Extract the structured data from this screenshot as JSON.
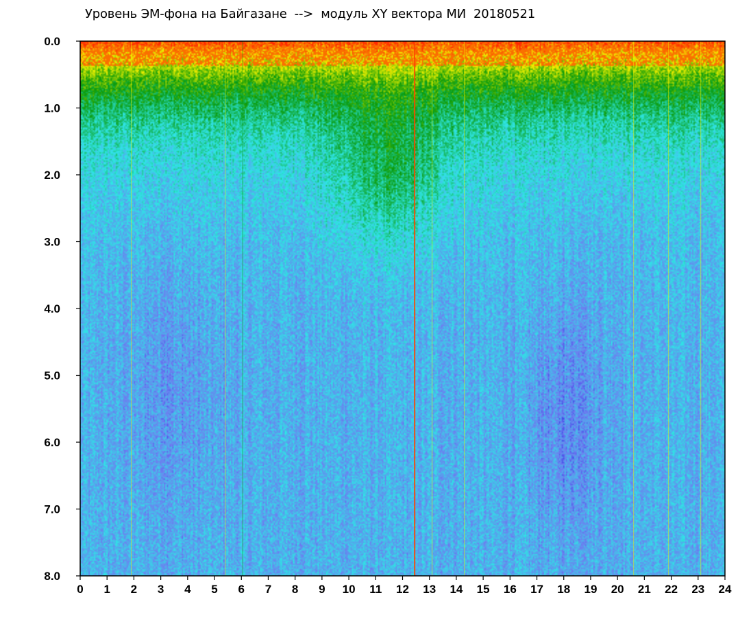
{
  "chart_data": {
    "type": "heatmap",
    "title": "Уровень ЭМ-фона на Байгазане  -->  модуль XY вектора МИ  20180521",
    "x_ticks": [
      "0",
      "1",
      "2",
      "3",
      "4",
      "5",
      "6",
      "7",
      "8",
      "9",
      "10",
      "11",
      "12",
      "13",
      "14",
      "15",
      "16",
      "17",
      "18",
      "19",
      "20",
      "21",
      "22",
      "23",
      "24"
    ],
    "y_ticks": [
      "0.0",
      "1.0",
      "2.0",
      "3.0",
      "4.0",
      "5.0",
      "6.0",
      "7.0",
      "8.0"
    ],
    "xlim": [
      0,
      24
    ],
    "ylim": [
      0.0,
      8.0
    ],
    "y_inverted": true,
    "xlabel": "",
    "ylabel": "",
    "grid": false,
    "color_scale": [
      "#0000dd",
      "#6e7cf0",
      "#2ee6e6",
      "#0a9a0a",
      "#f2f200",
      "#ff2a00"
    ],
    "vertical_streaks": [
      {
        "x": 12.45,
        "color": "#ff4400"
      },
      {
        "x": 6.05,
        "color": "#0a9a0a"
      },
      {
        "x": 1.9,
        "color": "#f2f200"
      },
      {
        "x": 13.1,
        "color": "#f2f200"
      },
      {
        "x": 14.3,
        "color": "#f2f200"
      },
      {
        "x": 21.9,
        "color": "#f2f200"
      },
      {
        "x": 23.1,
        "color": "#f2f200"
      },
      {
        "x": 20.6,
        "color": "#f2f200"
      },
      {
        "x": 5.4,
        "color": "#f2f200"
      }
    ]
  }
}
